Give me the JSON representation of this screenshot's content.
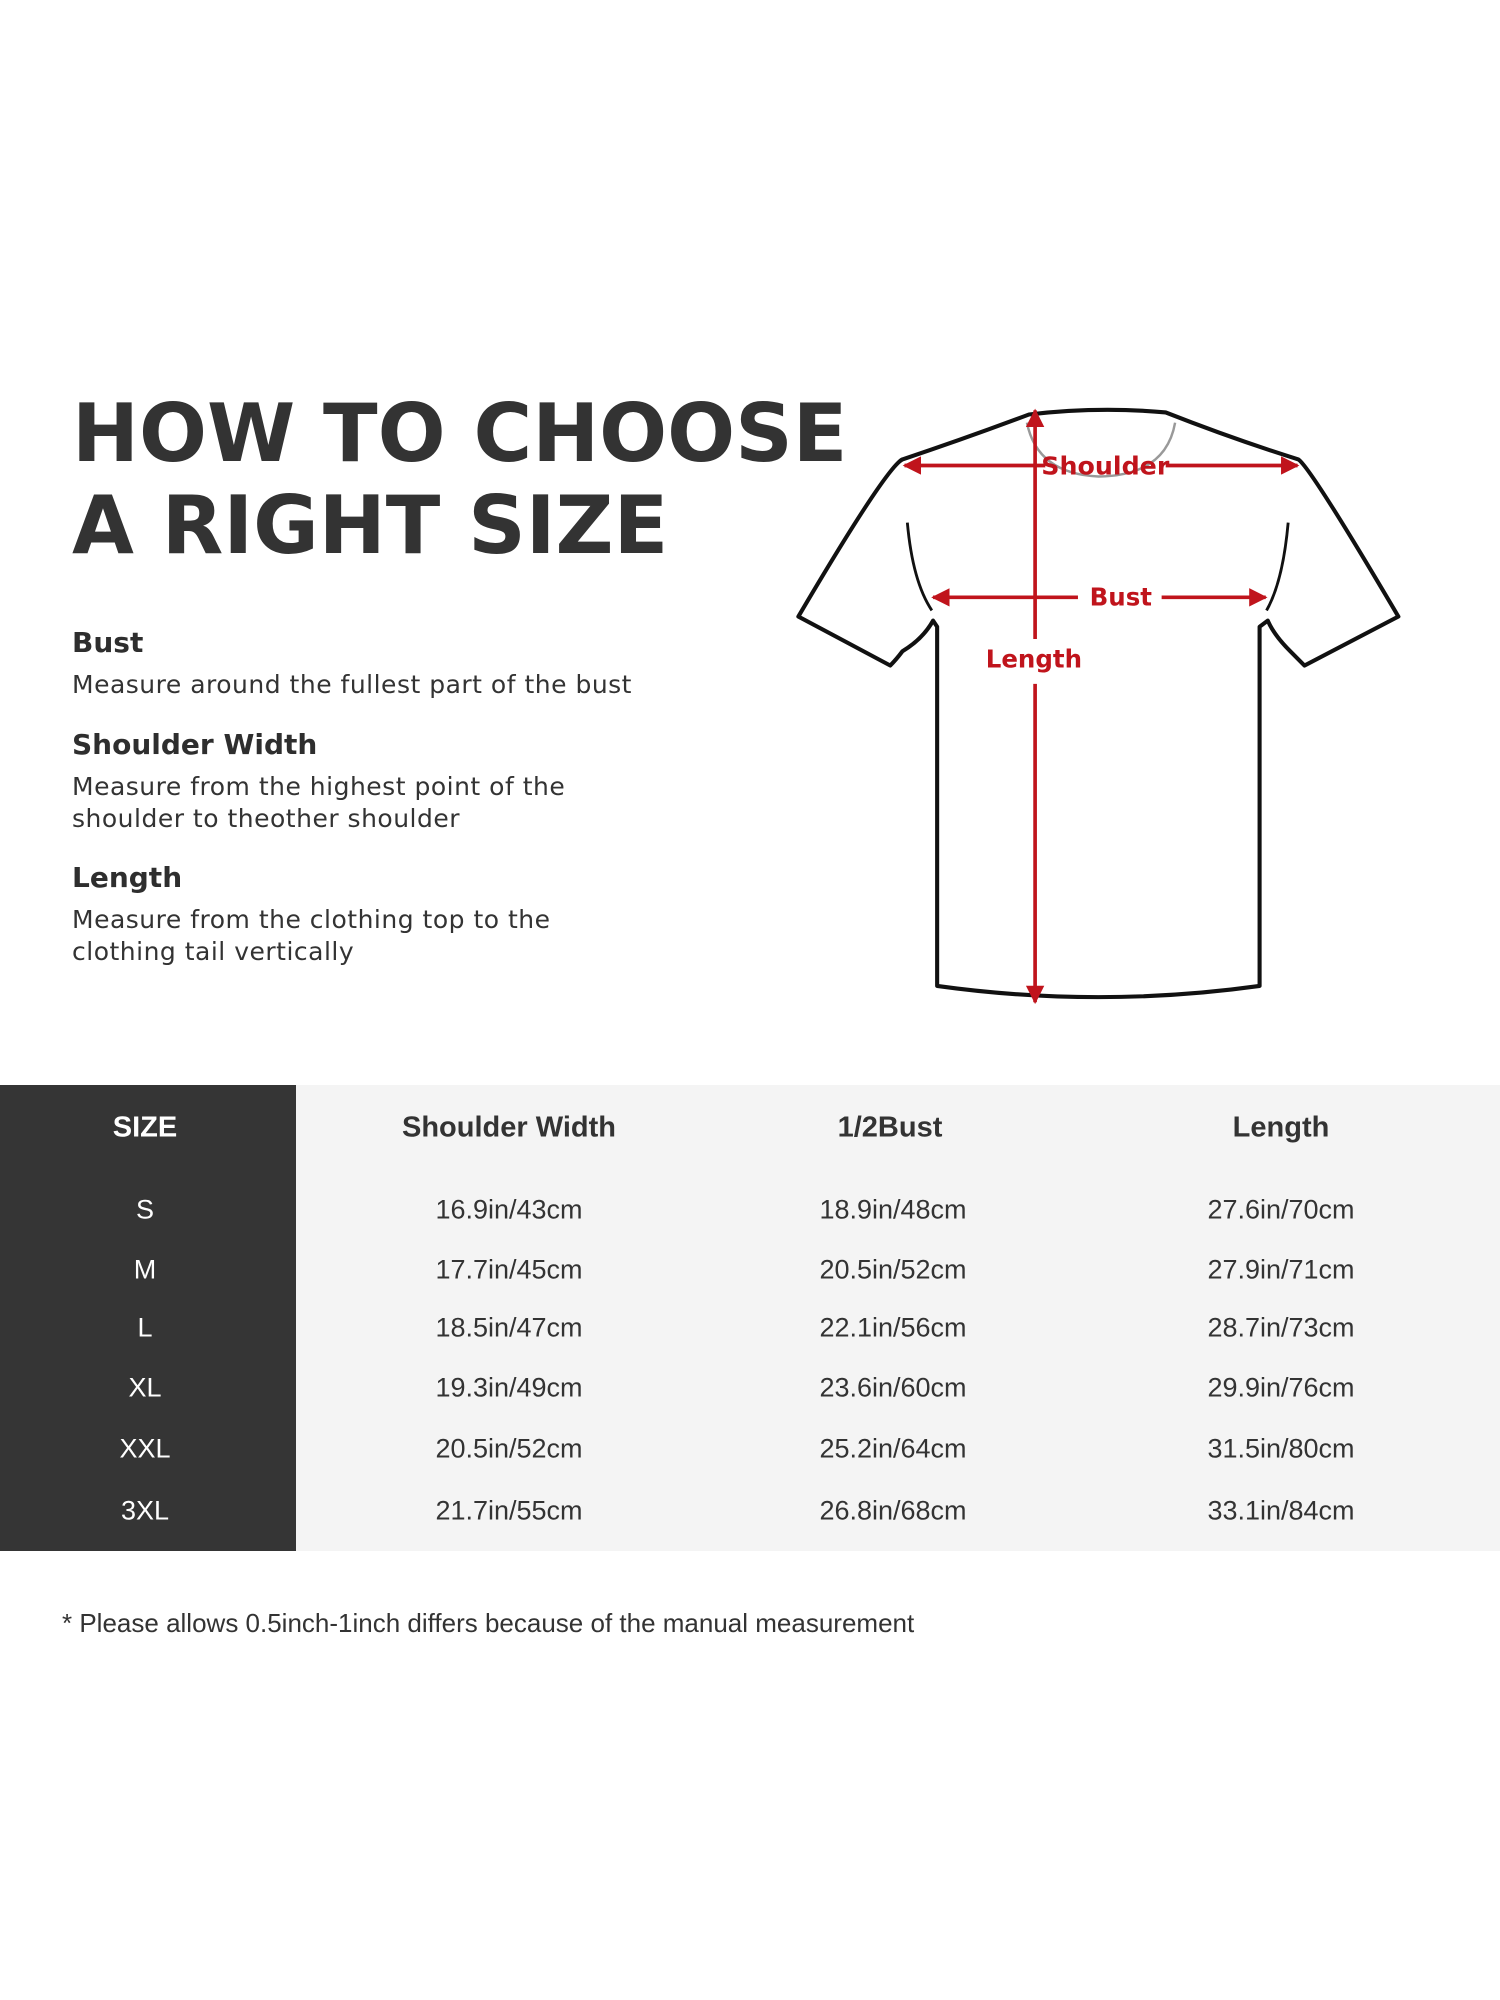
{
  "title": {
    "line1": "HOW TO CHOOSE",
    "line2": "A RIGHT SIZE"
  },
  "guide": [
    {
      "heading": "Bust",
      "lines": [
        "Measure around the fullest part of the bust"
      ]
    },
    {
      "heading": "Shoulder Width",
      "lines": [
        "Measure from the highest point of the",
        "shoulder to theother shoulder"
      ]
    },
    {
      "heading": "Length",
      "lines": [
        "Measure from the clothing top to the",
        "clothing tail vertically"
      ]
    }
  ],
  "diagram": {
    "labels": {
      "shoulder": "Shoulder",
      "bust": "Bust",
      "length": "Length"
    },
    "arrow_color": "#c0141c"
  },
  "table": {
    "headers": [
      "SIZE",
      "Shoulder Width",
      "1/2Bust",
      "Length"
    ],
    "rows": [
      [
        "S",
        "16.9in/43cm",
        "18.9in/48cm",
        "27.6in/70cm"
      ],
      [
        "M",
        "17.7in/45cm",
        "20.5in/52cm",
        "27.9in/71cm"
      ],
      [
        "L",
        "18.5in/47cm",
        "22.1in/56cm",
        "28.7in/73cm"
      ],
      [
        "XL",
        "19.3in/49cm",
        "23.6in/60cm",
        "29.9in/76cm"
      ],
      [
        "XXL",
        "20.5in/52cm",
        "25.2in/64cm",
        "31.5in/80cm"
      ],
      [
        "3XL",
        "21.7in/55cm",
        "26.8in/68cm",
        "33.1in/84cm"
      ]
    ]
  },
  "footnote": "* Please allows 0.5inch-1inch differs because of the  manual measurement"
}
